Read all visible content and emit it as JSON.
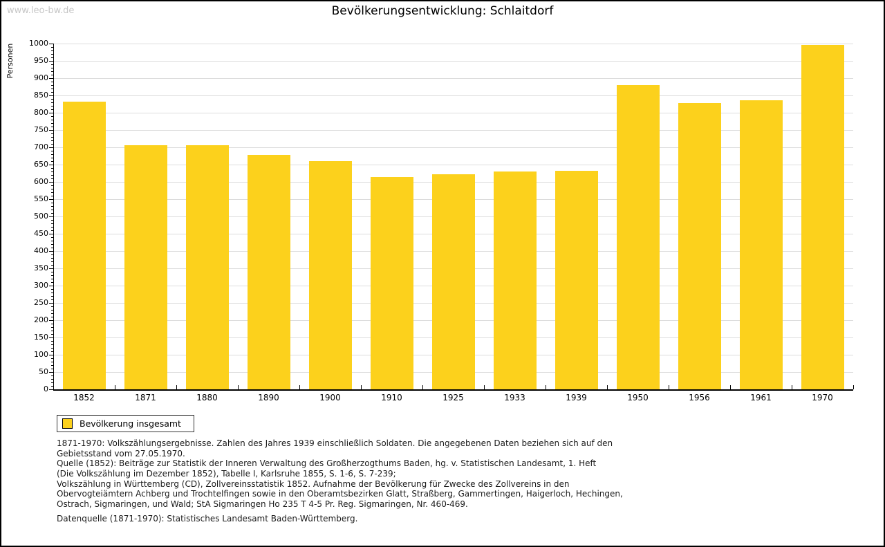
{
  "watermark": "www.leo-bw.de",
  "title": "Bevölkerungsentwicklung: Schlaitdorf",
  "chart_data": {
    "type": "bar",
    "title": "Bevölkerungsentwicklung: Schlaitdorf",
    "xlabel": "",
    "ylabel": "Personen",
    "ylim": [
      0,
      1000
    ],
    "ytick_step": 50,
    "yminor_step": 10,
    "yticks": [
      0,
      50,
      100,
      150,
      200,
      250,
      300,
      350,
      400,
      450,
      500,
      550,
      600,
      650,
      700,
      750,
      800,
      850,
      900,
      950,
      1000
    ],
    "grid": true,
    "bar_color": "#fcd11c",
    "grid_color": "#dcdcdc",
    "legend_position": "below-left",
    "categories": [
      "1852",
      "1871",
      "1880",
      "1890",
      "1900",
      "1910",
      "1925",
      "1933",
      "1939",
      "1950",
      "1956",
      "1961",
      "1970"
    ],
    "series": [
      {
        "name": "Bevölkerung insgesamt",
        "values": [
          833,
          706,
          706,
          678,
          660,
          615,
          622,
          630,
          633,
          880,
          828,
          836,
          996
        ]
      }
    ]
  },
  "legend": {
    "label": "Bevölkerung insgesamt",
    "swatch_color": "#fcd11c"
  },
  "footnote_lines": [
    "1871-1970: Volkszählungsergebnisse. Zahlen des Jahres 1939 einschließlich Soldaten. Die angegebenen Daten beziehen sich auf den",
    "Gebietsstand vom 27.05.1970.",
    "Quelle (1852): Beiträge zur Statistik der Inneren Verwaltung des Großherzogthums Baden, hg. v. Statistischen Landesamt, 1. Heft",
    "(Die Volkszählung im Dezember 1852), Tabelle I, Karlsruhe 1855, S. 1-6, S. 7-239;",
    "Volkszählung in Württemberg (CD), Zollvereinsstatistik 1852. Aufnahme der Bevölkerung für Zwecke des Zollvereins in den",
    "Obervogteiämtern Achberg und Trochtelfingen sowie in den Oberamtsbezirken Glatt, Straßberg, Gammertingen, Haigerloch, Hechingen,",
    "Ostrach, Sigmaringen, und Wald; StA Sigmaringen Ho 235 T 4-5 Pr. Reg. Sigmaringen, Nr. 460-469."
  ],
  "datasource_line": "Datenquelle (1871-1970): Statistisches Landesamt Baden-Württemberg."
}
